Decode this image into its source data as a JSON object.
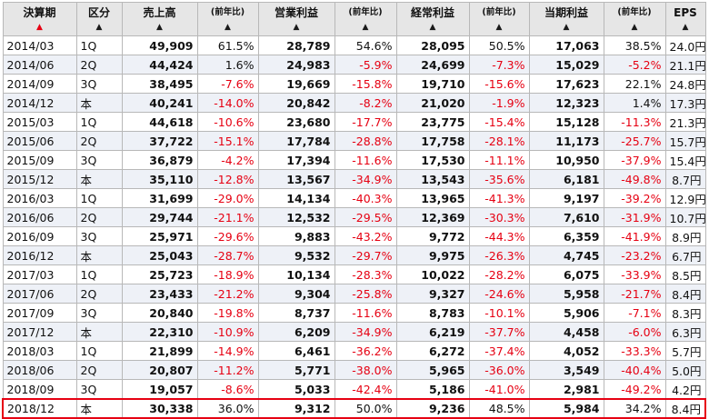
{
  "headers": [
    {
      "label": "決算期",
      "arrow": "▲",
      "active": true,
      "small": false
    },
    {
      "label": "区分",
      "arrow": "▲",
      "active": false,
      "small": false
    },
    {
      "label": "売上高",
      "arrow": "▲",
      "active": false,
      "small": false
    },
    {
      "label": "(前年比)",
      "arrow": "▲",
      "active": false,
      "small": true
    },
    {
      "label": "営業利益",
      "arrow": "▲",
      "active": false,
      "small": false
    },
    {
      "label": "(前年比)",
      "arrow": "▲",
      "active": false,
      "small": true
    },
    {
      "label": "経常利益",
      "arrow": "▲",
      "active": false,
      "small": false
    },
    {
      "label": "(前年比)",
      "arrow": "▲",
      "active": false,
      "small": true
    },
    {
      "label": "当期利益",
      "arrow": "▲",
      "active": false,
      "small": false
    },
    {
      "label": "(前年比)",
      "arrow": "▲",
      "active": false,
      "small": true
    },
    {
      "label": "EPS",
      "arrow": "▲",
      "active": false,
      "small": false
    }
  ],
  "rows": [
    [
      "2014/03",
      "1Q",
      "49,909",
      "61.5%",
      "28,789",
      "54.6%",
      "28,095",
      "50.5%",
      "17,063",
      "38.5%",
      "24.0円"
    ],
    [
      "2014/06",
      "2Q",
      "44,424",
      "1.6%",
      "24,983",
      "-5.9%",
      "24,699",
      "-7.3%",
      "15,029",
      "-5.2%",
      "21.1円"
    ],
    [
      "2014/09",
      "3Q",
      "38,495",
      "-7.6%",
      "19,669",
      "-15.8%",
      "19,710",
      "-15.6%",
      "17,623",
      "22.1%",
      "24.8円"
    ],
    [
      "2014/12",
      "本",
      "40,241",
      "-14.0%",
      "20,842",
      "-8.2%",
      "21,020",
      "-1.9%",
      "12,323",
      "1.4%",
      "17.3円"
    ],
    [
      "2015/03",
      "1Q",
      "44,618",
      "-10.6%",
      "23,680",
      "-17.7%",
      "23,775",
      "-15.4%",
      "15,128",
      "-11.3%",
      "21.3円"
    ],
    [
      "2015/06",
      "2Q",
      "37,722",
      "-15.1%",
      "17,784",
      "-28.8%",
      "17,758",
      "-28.1%",
      "11,173",
      "-25.7%",
      "15.7円"
    ],
    [
      "2015/09",
      "3Q",
      "36,879",
      "-4.2%",
      "17,394",
      "-11.6%",
      "17,530",
      "-11.1%",
      "10,950",
      "-37.9%",
      "15.4円"
    ],
    [
      "2015/12",
      "本",
      "35,110",
      "-12.8%",
      "13,567",
      "-34.9%",
      "13,543",
      "-35.6%",
      "6,181",
      "-49.8%",
      "8.7円"
    ],
    [
      "2016/03",
      "1Q",
      "31,699",
      "-29.0%",
      "14,134",
      "-40.3%",
      "13,965",
      "-41.3%",
      "9,197",
      "-39.2%",
      "12.9円"
    ],
    [
      "2016/06",
      "2Q",
      "29,744",
      "-21.1%",
      "12,532",
      "-29.5%",
      "12,369",
      "-30.3%",
      "7,610",
      "-31.9%",
      "10.7円"
    ],
    [
      "2016/09",
      "3Q",
      "25,971",
      "-29.6%",
      "9,883",
      "-43.2%",
      "9,772",
      "-44.3%",
      "6,359",
      "-41.9%",
      "8.9円"
    ],
    [
      "2016/12",
      "本",
      "25,043",
      "-28.7%",
      "9,532",
      "-29.7%",
      "9,975",
      "-26.3%",
      "4,745",
      "-23.2%",
      "6.7円"
    ],
    [
      "2017/03",
      "1Q",
      "25,723",
      "-18.9%",
      "10,134",
      "-28.3%",
      "10,022",
      "-28.2%",
      "6,075",
      "-33.9%",
      "8.5円"
    ],
    [
      "2017/06",
      "2Q",
      "23,433",
      "-21.2%",
      "9,304",
      "-25.8%",
      "9,327",
      "-24.6%",
      "5,958",
      "-21.7%",
      "8.4円"
    ],
    [
      "2017/09",
      "3Q",
      "20,840",
      "-19.8%",
      "8,737",
      "-11.6%",
      "8,783",
      "-10.1%",
      "5,906",
      "-7.1%",
      "8.3円"
    ],
    [
      "2017/12",
      "本",
      "22,310",
      "-10.9%",
      "6,209",
      "-34.9%",
      "6,219",
      "-37.7%",
      "4,458",
      "-6.0%",
      "6.3円"
    ],
    [
      "2018/03",
      "1Q",
      "21,899",
      "-14.9%",
      "6,461",
      "-36.2%",
      "6,272",
      "-37.4%",
      "4,052",
      "-33.3%",
      "5.7円"
    ],
    [
      "2018/06",
      "2Q",
      "20,807",
      "-11.2%",
      "5,771",
      "-38.0%",
      "5,965",
      "-36.0%",
      "3,549",
      "-40.4%",
      "5.0円"
    ],
    [
      "2018/09",
      "3Q",
      "19,057",
      "-8.6%",
      "5,033",
      "-42.4%",
      "5,186",
      "-41.0%",
      "2,981",
      "-49.2%",
      "4.2円"
    ],
    [
      "2018/12",
      "本",
      "30,338",
      "36.0%",
      "9,312",
      "50.0%",
      "9,236",
      "48.5%",
      "5,984",
      "34.2%",
      "8.4円"
    ]
  ],
  "highlight_row": 19,
  "colors": {
    "negative": "#e60012",
    "highlight_border": "#e60012",
    "header_bg": "#e6e6e6",
    "stripe": "#eef1f7"
  }
}
